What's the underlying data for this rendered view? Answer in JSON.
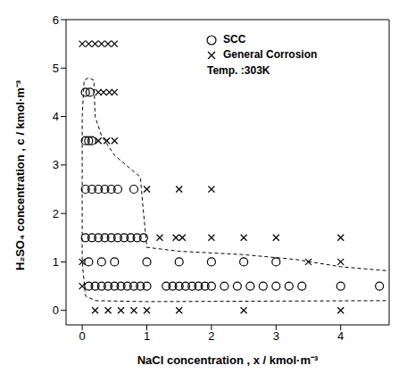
{
  "chart_data": {
    "type": "scatter",
    "x_label": "NaCl concentration , x / kmol·m⁻³",
    "y_label": "H₂SO₄ concentration , c / kmol·m⁻³",
    "annotations": [
      "Temp. :303K"
    ],
    "xlim": [
      -0.25,
      4.75
    ],
    "xticks": [
      0,
      1,
      2,
      3,
      4
    ],
    "ylim": [
      -0.3,
      6
    ],
    "yticks": [
      0,
      1,
      2,
      3,
      4,
      5,
      6
    ],
    "grid": false,
    "legend": "upper right",
    "series": [
      {
        "name": "SCC",
        "marker": "circle",
        "color": "#000000",
        "x": [
          0.05,
          0.12,
          0.05,
          0.1,
          0.15,
          0.05,
          0.15,
          0.25,
          0.35,
          0.45,
          0.55,
          0.8,
          0.05,
          0.15,
          0.25,
          0.35,
          0.45,
          0.55,
          0.65,
          0.75,
          0.85,
          0.95,
          0.1,
          0.3,
          0.5,
          1.0,
          1.5,
          2.0,
          2.5,
          3.0,
          0.1,
          0.2,
          0.3,
          0.4,
          0.5,
          0.6,
          0.7,
          0.8,
          0.9,
          1.0,
          1.3,
          1.4,
          1.5,
          1.6,
          1.7,
          1.8,
          1.9,
          2.0,
          2.2,
          2.4,
          2.6,
          2.8,
          3.0,
          3.2,
          3.4,
          4.0,
          4.6
        ],
        "y": [
          4.5,
          4.5,
          3.5,
          3.5,
          3.5,
          2.5,
          2.5,
          2.5,
          2.5,
          2.5,
          2.5,
          2.5,
          1.5,
          1.5,
          1.5,
          1.5,
          1.5,
          1.5,
          1.5,
          1.5,
          1.5,
          1.5,
          1.0,
          1.0,
          1.0,
          1.0,
          1.0,
          1.0,
          1.0,
          1.0,
          0.5,
          0.5,
          0.5,
          0.5,
          0.5,
          0.5,
          0.5,
          0.5,
          0.5,
          0.5,
          0.5,
          0.5,
          0.5,
          0.5,
          0.5,
          0.5,
          0.5,
          0.5,
          0.5,
          0.5,
          0.5,
          0.5,
          0.5,
          0.5,
          0.5,
          0.5,
          0.5
        ]
      },
      {
        "name": "General Corrosion",
        "marker": "x",
        "color": "#000000",
        "x": [
          0.0,
          0.1,
          0.2,
          0.3,
          0.4,
          0.5,
          0.25,
          0.33,
          0.42,
          0.5,
          0.25,
          0.38,
          0.5,
          1.0,
          1.5,
          2.0,
          1.2,
          1.45,
          1.55,
          2.0,
          2.5,
          3.0,
          4.0,
          0.0,
          3.5,
          4.0,
          0.0,
          0.2,
          0.4,
          0.6,
          0.8,
          1.0,
          1.5,
          2.5,
          4.0
        ],
        "y": [
          5.5,
          5.5,
          5.5,
          5.5,
          5.5,
          5.5,
          4.5,
          4.5,
          4.5,
          4.5,
          3.5,
          3.5,
          3.5,
          2.5,
          2.5,
          2.5,
          1.5,
          1.5,
          1.5,
          1.5,
          1.5,
          1.5,
          1.5,
          1.0,
          1.0,
          1.0,
          0.5,
          0,
          0,
          0,
          0,
          0,
          0,
          0,
          0
        ]
      }
    ],
    "boundary": {
      "line_style": "dashed",
      "color": "#000000",
      "x": [
        4.7,
        4.0,
        3.3,
        2.5,
        1.5,
        1.0,
        0.95,
        0.9,
        0.5,
        0.3,
        0.2,
        0.18,
        0.1,
        0.03,
        0.0,
        0.0,
        0.05,
        0.2,
        1.0,
        4.7
      ],
      "y": [
        0.82,
        0.9,
        1.05,
        1.15,
        1.22,
        1.3,
        2.0,
        2.75,
        3.2,
        3.6,
        4.0,
        4.75,
        4.8,
        4.75,
        4.0,
        1.0,
        0.3,
        0.2,
        0.18,
        0.2
      ]
    }
  }
}
